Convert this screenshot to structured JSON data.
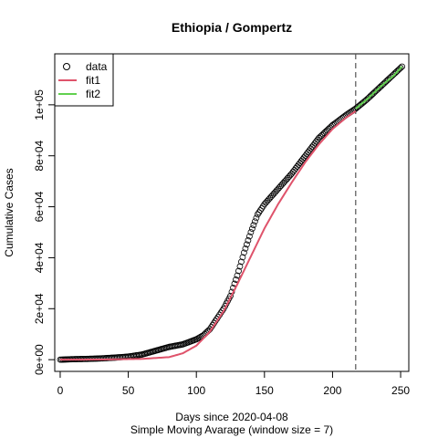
{
  "chart_data": {
    "type": "scatter",
    "title": "Ethiopia / Gompertz",
    "xlabel": "Days since 2020-04-08",
    "xlabel2": "Simple Moving Avarage (window size = 7)",
    "ylabel": "Cumulative Cases",
    "xlim": [
      -4,
      256
    ],
    "ylim": [
      -4600,
      120000
    ],
    "x_ticks": [
      0,
      50,
      100,
      150,
      200,
      250
    ],
    "y_ticks": [
      0,
      20000,
      40000,
      60000,
      80000,
      100000
    ],
    "x_tick_labels": [
      "0",
      "50",
      "100",
      "150",
      "200",
      "250"
    ],
    "y_tick_labels": [
      "0e+00",
      "2e+04",
      "4e+04",
      "6e+04",
      "8e+04",
      "1e+05"
    ],
    "cutoff_day": 217,
    "legend": {
      "position": "top-left",
      "entries": [
        {
          "label": "data",
          "symbol": "circle"
        },
        {
          "label": "fit1",
          "symbol": "line"
        },
        {
          "label": "fit2",
          "symbol": "line"
        }
      ]
    },
    "series": [
      {
        "name": "data",
        "kind": "points",
        "color": "#000000",
        "x": [
          0,
          10,
          20,
          30,
          40,
          50,
          60,
          70,
          80,
          90,
          100,
          105,
          110,
          115,
          120,
          125,
          130,
          135,
          140,
          145,
          150,
          155,
          160,
          170,
          180,
          190,
          200,
          210,
          217,
          225,
          235,
          245,
          251
        ],
        "y": [
          0,
          200,
          300,
          500,
          800,
          1200,
          2000,
          3500,
          5000,
          6000,
          8000,
          9500,
          12000,
          16000,
          20000,
          25000,
          33000,
          42000,
          50000,
          57000,
          61000,
          64000,
          67000,
          73000,
          80000,
          87000,
          92000,
          96000,
          98500,
          102000,
          107000,
          112000,
          115000
        ]
      },
      {
        "name": "fit1",
        "kind": "line",
        "color": "#df536b",
        "x": [
          0,
          30,
          60,
          80,
          90,
          100,
          110,
          120,
          130,
          140,
          150,
          160,
          170,
          180,
          190,
          200,
          210,
          217
        ],
        "y": [
          0,
          50,
          300,
          1000,
          2500,
          5500,
          11000,
          19000,
          29500,
          40500,
          51500,
          61000,
          69500,
          77500,
          84500,
          90500,
          95000,
          97500
        ]
      },
      {
        "name": "fit2",
        "kind": "line",
        "color": "#61d04f",
        "x": [
          217,
          225,
          235,
          245,
          251
        ],
        "y": [
          98500,
          102000,
          107000,
          111500,
          115000
        ]
      }
    ],
    "grid": false
  }
}
